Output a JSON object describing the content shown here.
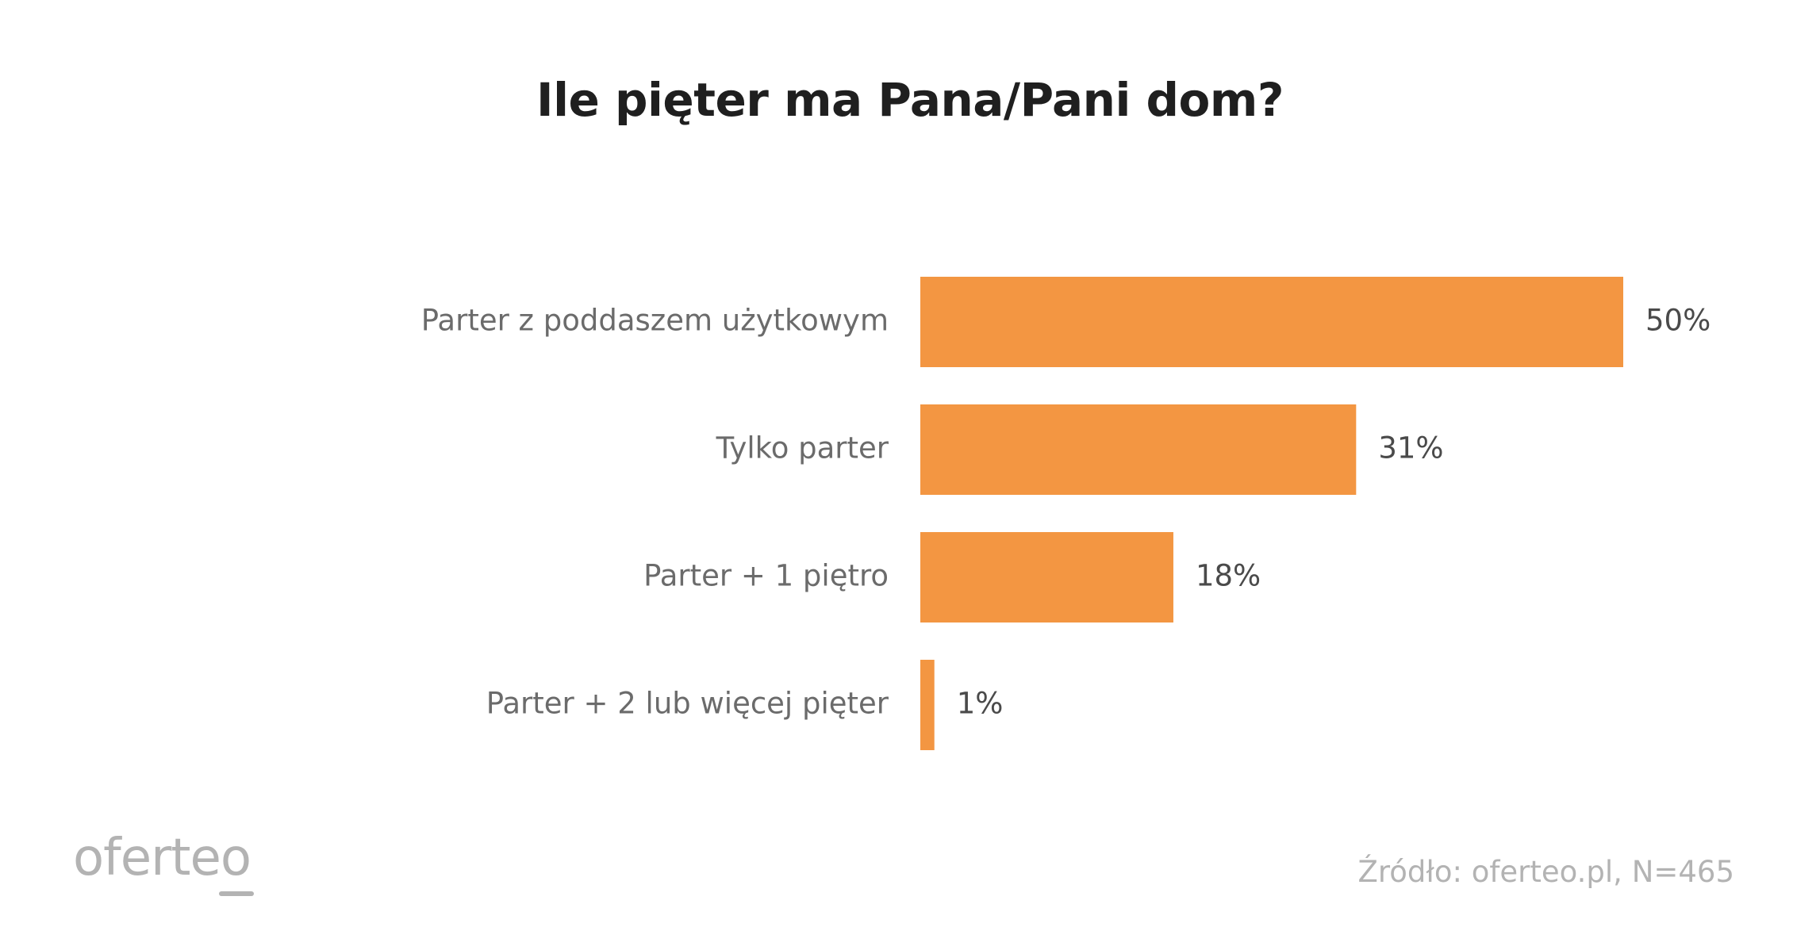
{
  "colors": {
    "bar": "#F39642",
    "title": "#1f1f1f",
    "category_text": "#6b6b6b",
    "value_text": "#4a4a4a",
    "footer_text": "#b3b3b3"
  },
  "chart_data": {
    "type": "bar",
    "orientation": "horizontal",
    "title": "Ile pięter ma Pana/Pani dom?",
    "categories": [
      "Parter z poddaszem użytkowym",
      "Tylko parter",
      "Parter + 1 piętro",
      "Parter + 2 lub więcej pięter"
    ],
    "values": [
      50,
      31,
      18,
      1
    ],
    "value_labels": [
      "50%",
      "31%",
      "18%",
      "1%"
    ],
    "unit": "%",
    "xlim": [
      0,
      50
    ],
    "grid": false,
    "axes_visible": false,
    "legend": "none"
  },
  "footer": {
    "logo_text": "oferteo",
    "source": "Źródło: oferteo.pl, N=465"
  }
}
